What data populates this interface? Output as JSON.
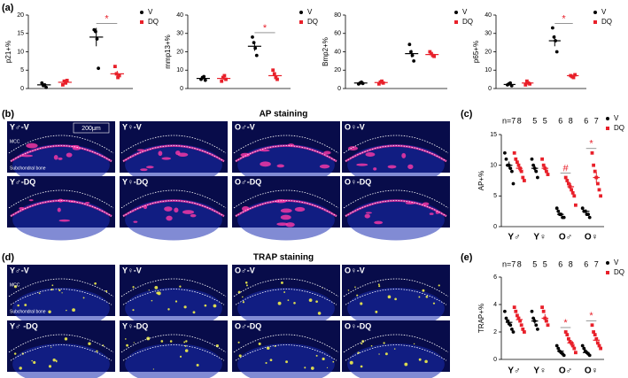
{
  "panel_labels": [
    "(a)",
    "(b)",
    "(c)",
    "(d)",
    "(e)"
  ],
  "stainings": [
    {
      "title": "AP staining",
      "scale_bar": "200μm",
      "region_labels": [
        "MCC",
        "Subchondral bone"
      ],
      "images": [
        "Y♂-V",
        "Y♀-V",
        "O♂-V",
        "O♀-V",
        "Y♂-DQ",
        "Y♀-DQ",
        "O♂-DQ",
        "O♀-DQ"
      ]
    },
    {
      "title": "TRAP staining",
      "region_labels": [
        "MCC",
        "Subchondral bone"
      ],
      "images": [
        "Y♂-V",
        "Y♀-V",
        "O♂-V",
        "O♀-V",
        "Y♂ -DQ",
        "Y♀-DQ",
        "O♂-DQ",
        "O♀-DQ"
      ]
    }
  ],
  "chart_data": [
    {
      "type": "scatter",
      "ylabel": "p21+%",
      "ylim": [
        0,
        20
      ],
      "yticks": [
        0,
        5,
        10,
        15,
        20
      ],
      "categories": [
        null,
        null
      ],
      "significance": [
        null,
        "*"
      ],
      "legend": "right",
      "series": [
        {
          "name": "V",
          "color": "#000000",
          "marker": "circle",
          "values": [
            [
              1.5,
              0.8,
              1,
              0.3
            ],
            [
              16,
              15.5,
              13.5,
              5.5
            ]
          ],
          "mean": [
            1,
            14
          ],
          "sem": [
            0.4,
            2.5
          ]
        },
        {
          "name": "DQ",
          "color": "#e8202a",
          "marker": "square",
          "values": [
            [
              1,
              2,
              1.5,
              2.2
            ],
            [
              6,
              4,
              3,
              3.5
            ]
          ],
          "mean": [
            1.7,
            4
          ],
          "sem": [
            0.3,
            0.8
          ]
        }
      ]
    },
    {
      "type": "scatter",
      "ylabel": "mmp13+%",
      "ylim": [
        0,
        40
      ],
      "yticks": [
        0,
        10,
        20,
        30,
        40
      ],
      "categories": [
        null,
        null
      ],
      "significance": [
        null,
        "*"
      ],
      "legend": "right",
      "series": [
        {
          "name": "V",
          "color": "#000000",
          "marker": "circle",
          "values": [
            [
              5,
              6,
              6.5,
              4.5
            ],
            [
              28,
              25,
              22,
              18
            ]
          ],
          "mean": [
            5.5,
            23
          ],
          "sem": [
            0.5,
            2.5
          ]
        },
        {
          "name": "DQ",
          "color": "#e8202a",
          "marker": "square",
          "values": [
            [
              4,
              6,
              7,
              5
            ],
            [
              10,
              8,
              6,
              5
            ]
          ],
          "mean": [
            5.5,
            7
          ],
          "sem": [
            0.7,
            1.2
          ]
        }
      ]
    },
    {
      "type": "scatter",
      "ylabel": "Bmp2+%",
      "ylim": [
        0,
        80
      ],
      "yticks": [
        0,
        20,
        40,
        60,
        80
      ],
      "categories": [
        null,
        null
      ],
      "legend": "right",
      "series": [
        {
          "name": "V",
          "color": "#000000",
          "marker": "circle",
          "values": [
            [
              5,
              6,
              7,
              5.5
            ],
            [
              48,
              40,
              36,
              30
            ]
          ],
          "mean": [
            6,
            38
          ],
          "sem": [
            0.5,
            4
          ]
        },
        {
          "name": "DQ",
          "color": "#e8202a",
          "marker": "square",
          "values": [
            [
              5,
              7,
              8,
              6
            ],
            [
              40,
              38,
              36,
              35
            ]
          ],
          "mean": [
            6.5,
            37
          ],
          "sem": [
            0.7,
            1.5
          ]
        }
      ]
    },
    {
      "type": "scatter",
      "ylabel": "p65+%",
      "ylim": [
        0,
        40
      ],
      "yticks": [
        0,
        10,
        20,
        30,
        40
      ],
      "categories": [
        null,
        null
      ],
      "significance": [
        null,
        "*"
      ],
      "legend": "right",
      "series": [
        {
          "name": "V",
          "color": "#000000",
          "marker": "circle",
          "values": [
            [
              2,
              2.5,
              3,
              1.5
            ],
            [
              33,
              28,
              26,
              20
            ]
          ],
          "mean": [
            2.2,
            26
          ],
          "sem": [
            0.3,
            3
          ]
        },
        {
          "name": "DQ",
          "color": "#e8202a",
          "marker": "square",
          "values": [
            [
              2,
              4,
              3,
              2.5
            ],
            [
              7,
              6.5,
              6,
              7.5
            ]
          ],
          "mean": [
            3,
            7
          ],
          "sem": [
            0.5,
            0.5
          ]
        }
      ]
    },
    {
      "type": "scatter",
      "ylabel": "AP+%",
      "ylim": [
        0,
        15
      ],
      "yticks": [
        0,
        5,
        10,
        15
      ],
      "categories": [
        "Y♂",
        "Y♀",
        "O♂",
        "O♀"
      ],
      "group_n": [
        [
          "n=7",
          "8"
        ],
        [
          "5",
          "5"
        ],
        [
          "6",
          "8"
        ],
        [
          "6",
          "7"
        ]
      ],
      "significance": [
        null,
        null,
        "#",
        "*"
      ],
      "legend": "top-right",
      "series": [
        {
          "name": "V",
          "color": "#000000",
          "marker": "circle",
          "values": [
            [
              12,
              11,
              10,
              10,
              9.5,
              9,
              7
            ],
            [
              11,
              10,
              9.5,
              9,
              8
            ],
            [
              3,
              2.5,
              2,
              2,
              1.5,
              1.5
            ],
            [
              3,
              2.5,
              2.5,
              2,
              2,
              1.5
            ]
          ],
          "mean": [
            10,
            9.5,
            2,
            2.5
          ],
          "sem": [
            0.6,
            0.5,
            0.3,
            0.3
          ]
        },
        {
          "name": "DQ",
          "color": "#e8202a",
          "marker": "square",
          "values": [
            [
              12,
              11,
              10.5,
              10,
              9.5,
              9,
              8,
              7.5
            ],
            [
              11,
              10,
              9.5,
              9,
              8.5
            ],
            [
              8,
              7.5,
              7,
              6.5,
              6,
              5.5,
              5,
              3.5
            ],
            [
              12,
              10,
              9,
              8,
              7,
              6,
              5
            ]
          ],
          "mean": [
            9.5,
            9.5,
            6.5,
            8
          ],
          "sem": [
            0.5,
            0.5,
            0.6,
            0.9
          ]
        }
      ]
    },
    {
      "type": "scatter",
      "ylabel": "TRAP+%",
      "ylim": [
        0,
        6
      ],
      "yticks": [
        0,
        2,
        4,
        6
      ],
      "categories": [
        "Y♂",
        "Y♀",
        "O♂",
        "O♀"
      ],
      "group_n": [
        [
          "n=7",
          "8"
        ],
        [
          "5",
          "5"
        ],
        [
          "6",
          "8"
        ],
        [
          "6",
          "7"
        ]
      ],
      "significance": [
        null,
        null,
        "*",
        "*"
      ],
      "legend": "top-right",
      "series": [
        {
          "name": "V",
          "color": "#000000",
          "marker": "circle",
          "values": [
            [
              3.5,
              3,
              2.8,
              2.6,
              2.5,
              2.2,
              2
            ],
            [
              3.5,
              3,
              2.8,
              2.5,
              2.2
            ],
            [
              1,
              0.8,
              0.6,
              0.5,
              0.4,
              0.3
            ],
            [
              1,
              0.8,
              0.6,
              0.5,
              0.4,
              0.3
            ]
          ],
          "mean": [
            2.7,
            2.8,
            0.6,
            0.5
          ],
          "sem": [
            0.2,
            0.2,
            0.1,
            0.1
          ]
        },
        {
          "name": "DQ",
          "color": "#e8202a",
          "marker": "square",
          "values": [
            [
              3.8,
              3.5,
              3.2,
              3,
              2.8,
              2.5,
              2.2,
              2
            ],
            [
              3.8,
              3.5,
              3,
              2.8,
              2.5
            ],
            [
              2,
              1.8,
              1.5,
              1.3,
              1.2,
              1,
              0.8,
              0.5
            ],
            [
              2.5,
              2,
              1.8,
              1.5,
              1.2,
              1,
              0.8
            ]
          ],
          "mean": [
            2.9,
            3,
            1.2,
            1.4
          ],
          "sem": [
            0.2,
            0.3,
            0.2,
            0.2
          ]
        }
      ]
    }
  ]
}
